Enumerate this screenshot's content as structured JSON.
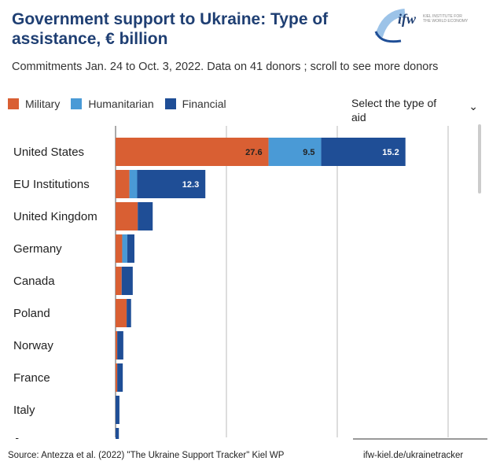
{
  "header": {
    "title": "Government support to Ukraine: Type of assistance, € billion",
    "subtitle": "Commitments Jan. 24 to Oct. 3, 2022. Data on 41 donors ; scroll to see more donors",
    "logo_text": "ifw KIEL INSTITUTE FOR THE WORLD ECONOMY"
  },
  "select": {
    "label": "Select the type of aid",
    "icon": "chevron-down-icon"
  },
  "footer": {
    "source": "Source: Antezza et al. (2022) \"The Ukraine Support Tracker\" Kiel WP",
    "link": "ifw-kiel.de/ukrainetracker"
  },
  "colors": {
    "Military": "#d95f33",
    "Humanitarian": "#4a9ad6",
    "Financial": "#1f4e96"
  },
  "chart_data": {
    "type": "bar",
    "orientation": "horizontal",
    "stacked": true,
    "title": "Government support to Ukraine: Type of assistance, € billion",
    "legend": [
      "Military",
      "Humanitarian",
      "Financial"
    ],
    "legend_position": "top-left",
    "categories": [
      "United States",
      "EU Institutions",
      "United Kingdom",
      "Germany",
      "Canada",
      "Poland",
      "Norway",
      "France",
      "Italy",
      "Japan"
    ],
    "series": [
      {
        "name": "Military",
        "values": [
          27.6,
          2.5,
          4.0,
          1.2,
          1.1,
          2.0,
          0.3,
          0.3,
          0.0,
          0.0
        ]
      },
      {
        "name": "Humanitarian",
        "values": [
          9.5,
          1.4,
          0.0,
          0.9,
          0.0,
          0.0,
          0.0,
          0.0,
          0.0,
          0.0
        ]
      },
      {
        "name": "Financial",
        "values": [
          15.2,
          12.3,
          2.7,
          1.3,
          2.0,
          0.8,
          1.1,
          1.0,
          0.7,
          0.6
        ]
      }
    ],
    "data_labels": {
      "0": [
        "27.6",
        "9.5",
        "15.2"
      ],
      "1": [
        "",
        "",
        "12.3"
      ]
    },
    "xlim": [
      0,
      60
    ],
    "gridlines": [
      20,
      40,
      60
    ],
    "grid": true
  }
}
